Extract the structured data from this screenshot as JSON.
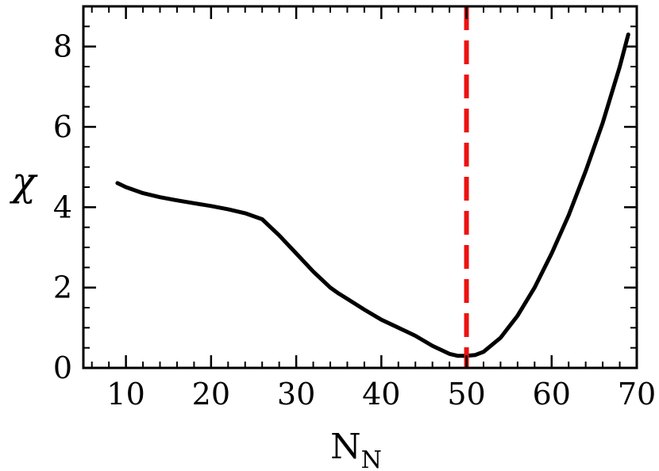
{
  "chart_data": {
    "type": "line",
    "title": "",
    "xlabel": "N",
    "xlabel_subscript": "N",
    "ylabel": "χ",
    "xlim": [
      5,
      70
    ],
    "ylim": [
      0,
      9
    ],
    "x_ticks": [
      10,
      20,
      30,
      40,
      50,
      60,
      70
    ],
    "y_ticks": [
      0,
      2,
      4,
      6,
      8
    ],
    "x_minor_step": 2,
    "y_minor_step": 0.5,
    "grid": false,
    "legend": "none",
    "series": [
      {
        "color": "#000000",
        "x": [
          9,
          10,
          12,
          14,
          16,
          18,
          20,
          22,
          24,
          26,
          28,
          30,
          32,
          34,
          35,
          36,
          38,
          40,
          42,
          43,
          44,
          46,
          48,
          49,
          50,
          51,
          52,
          54,
          56,
          58,
          60,
          62,
          64,
          66,
          68,
          69
        ],
        "y": [
          4.6,
          4.5,
          4.35,
          4.25,
          4.17,
          4.1,
          4.03,
          3.95,
          3.85,
          3.7,
          3.3,
          2.85,
          2.4,
          2.0,
          1.85,
          1.72,
          1.45,
          1.2,
          1.0,
          0.9,
          0.8,
          0.55,
          0.35,
          0.3,
          0.3,
          0.32,
          0.4,
          0.75,
          1.3,
          2.0,
          2.85,
          3.8,
          4.9,
          6.1,
          7.5,
          8.3
        ]
      }
    ],
    "annotations": [
      {
        "type": "vline",
        "x": 50,
        "style": "dashed",
        "color": "#ee1111"
      }
    ]
  }
}
